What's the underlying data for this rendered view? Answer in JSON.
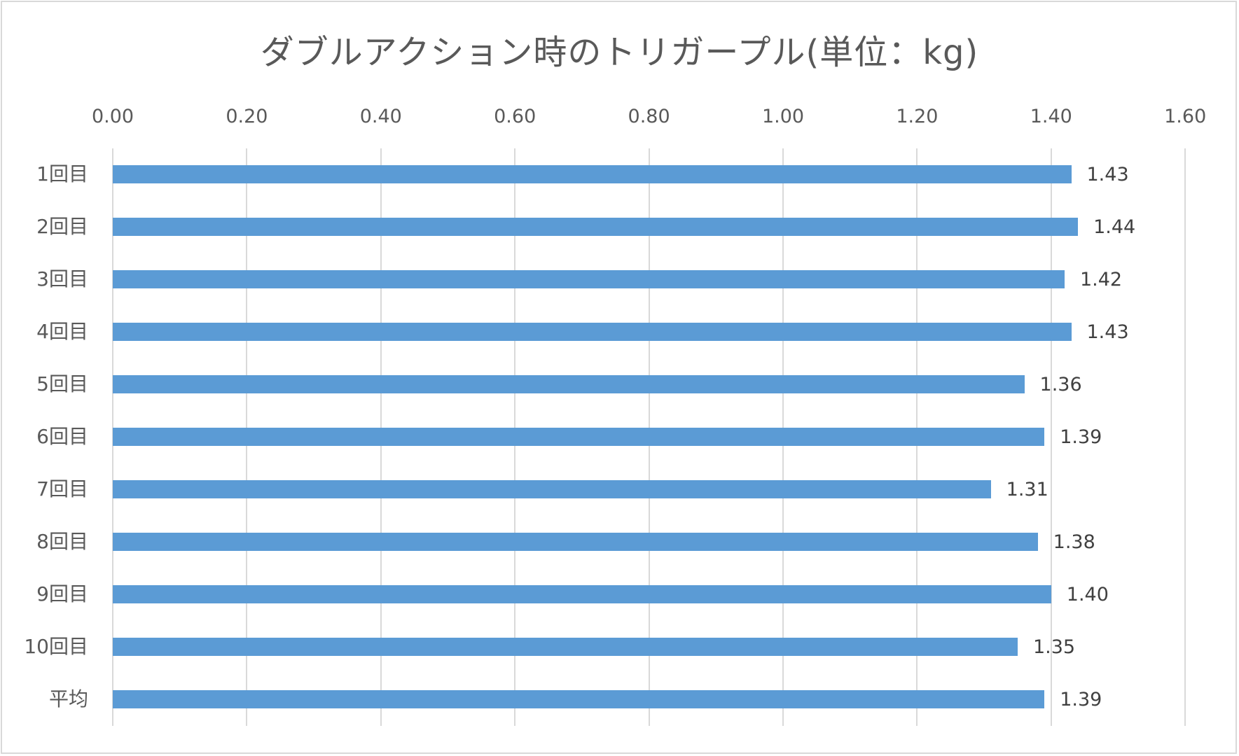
{
  "chart": {
    "title": "ダブルアクション時のトリガープル(単位：kg)",
    "bar_color": "#5B9BD5",
    "grid_color": "#D9D9D9",
    "text_color": "#595959"
  },
  "chart_data": {
    "type": "bar",
    "orientation": "horizontal",
    "title": "ダブルアクション時のトリガープル(単位：kg)",
    "categories": [
      "1回目",
      "2回目",
      "3回目",
      "4回目",
      "5回目",
      "6回目",
      "7回目",
      "8回目",
      "9回目",
      "10回目",
      "平均"
    ],
    "values": [
      1.43,
      1.44,
      1.42,
      1.43,
      1.36,
      1.39,
      1.31,
      1.38,
      1.4,
      1.35,
      1.39
    ],
    "value_labels": [
      "1.43",
      "1.44",
      "1.42",
      "1.43",
      "1.36",
      "1.39",
      "1.31",
      "1.38",
      "1.40",
      "1.35",
      "1.39"
    ],
    "xlabel": "",
    "ylabel": "",
    "xlim": [
      0,
      1.6
    ],
    "x_ticks": [
      "0.00",
      "0.20",
      "0.40",
      "0.60",
      "0.80",
      "1.00",
      "1.20",
      "1.40",
      "1.60"
    ],
    "x_axis_position": "top",
    "grid": true,
    "legend": "none",
    "data_labels": true
  }
}
